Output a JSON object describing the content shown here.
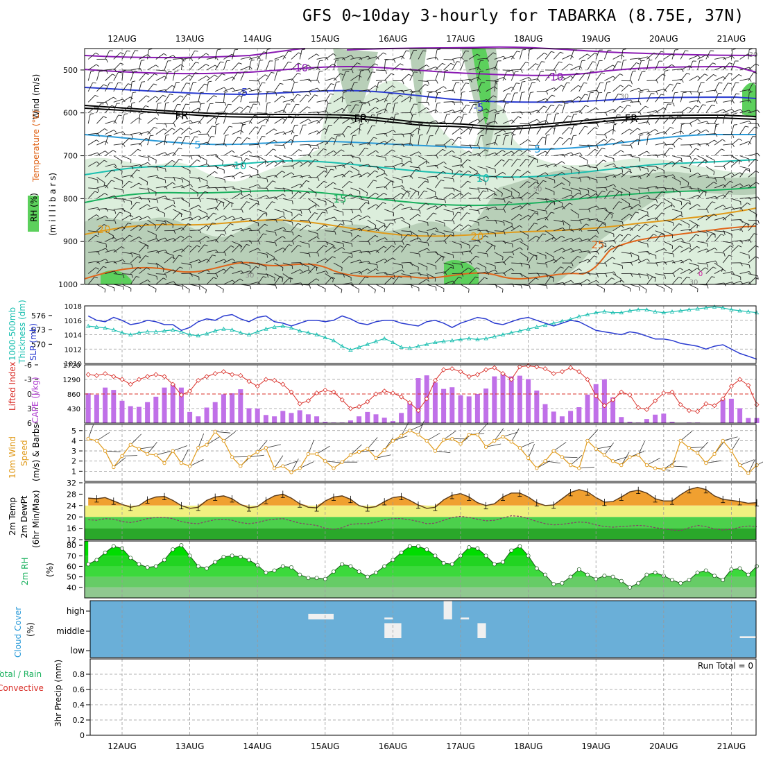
{
  "title": "GFS 0~10day 3-hourly for TABARKA (8.75E, 37N)",
  "days": [
    "12AUG",
    "13AUG",
    "14AUG",
    "15AUG",
    "16AUG",
    "17AUG",
    "18AUG",
    "19AUG",
    "20AUG",
    "21AUG"
  ],
  "colors": {
    "purple": "#8a1ab3",
    "blue": "#2a3bd0",
    "sky": "#2a9ad8",
    "teal": "#1abfb0",
    "green": "#1ab15e",
    "gold": "#e09a1a",
    "orange": "#e0651a",
    "cloud": "#6aafd8",
    "rh_light": "#dceedc",
    "rh_mid": "#b8cfb8",
    "rh_wet": "#5cd05c"
  },
  "panels": {
    "upper_air": {
      "label_wind": "Wind (m/s)",
      "label_temp": "Temperature (°C)",
      "label_rh": "RH (%)",
      "label_axis": "(m i l l i b a r s)",
      "yticks": [
        "500",
        "600",
        "700",
        "800",
        "900",
        "1000"
      ],
      "contour_labels": [
        "-10",
        "-10",
        "-5",
        "-5",
        "FR",
        "FR",
        "FR",
        "-5",
        "-5",
        "-10",
        "5",
        "10",
        "15",
        "20",
        "20",
        "25",
        "30",
        "30",
        "30",
        "50",
        "0"
      ]
    },
    "slp": {
      "label_thk": "Thickness (dm)",
      "label_thk2": "1000-500mb",
      "label_slp": "SLP (mb)",
      "thk_ticks": [
        "576",
        "573",
        "570"
      ],
      "slp_ticks": [
        "1018",
        "1016",
        "1014",
        "1012",
        "1010"
      ]
    },
    "cape": {
      "label_li": "Lifted Index",
      "label_cape": "CAPE (J/kg)",
      "li_ticks": [
        "-6",
        "-3",
        "0",
        "3",
        "6"
      ],
      "cape_ticks": [
        "1720",
        "1290",
        "860",
        "430"
      ]
    },
    "wind10": {
      "label_a": "10m Wind",
      "label_b": "Speed",
      "label_c": "(m/s) & Barbs",
      "ticks": [
        "5",
        "4",
        "3",
        "2",
        "1"
      ]
    },
    "temp2m": {
      "label_a": "2m Temp",
      "label_b": "2m DewPt",
      "label_c": "(6hr Min/Max)",
      "ticks": [
        "32",
        "28",
        "24",
        "20",
        "16",
        "12"
      ]
    },
    "rh2m": {
      "label_a": "2m RH",
      "label_b": "(%)",
      "ticks": [
        "80",
        "70",
        "60",
        "50",
        "40"
      ]
    },
    "cloud": {
      "label_a": "Cloud Cover",
      "label_b": "(%)",
      "levels": [
        "high",
        "middle",
        "low"
      ]
    },
    "precip": {
      "label_a": "3hr Precip (mm)",
      "label_b": "Total / Rain",
      "label_c": "Convective",
      "run_total": "Run Total = 0",
      "ticks": [
        "0.8",
        "0.6",
        "0.4",
        "0.2",
        "0"
      ]
    }
  },
  "chart_data": {
    "type": "line",
    "title": "GFS 0~10day 3-hourly for TABARKA (8.75E, 37N)",
    "x_start": "11AUG 12Z",
    "step_hours": 3,
    "slp_mb": [
      1016.6,
      1016.0,
      1015.8,
      1016.4,
      1016.0,
      1015.4,
      1015.6,
      1016.0,
      1015.8,
      1015.4,
      1015.4,
      1014.6,
      1015.0,
      1015.8,
      1016.2,
      1016.0,
      1016.6,
      1016.8,
      1016.2,
      1015.8,
      1016.4,
      1016.6,
      1015.8,
      1015.6,
      1015.2,
      1015.6,
      1016.0,
      1016.0,
      1015.8,
      1016.0,
      1016.6,
      1016.2,
      1015.6,
      1015.4,
      1015.8,
      1016.0,
      1016.0,
      1015.6,
      1015.4,
      1015.2,
      1015.8,
      1016.0,
      1015.6,
      1015.0,
      1015.6,
      1016.0,
      1016.4,
      1016.2,
      1015.6,
      1015.4,
      1015.8,
      1016.2,
      1016.4,
      1016.0,
      1015.6,
      1015.2,
      1015.6,
      1016.0,
      1015.8,
      1015.2,
      1014.6,
      1014.4,
      1014.2,
      1014.0,
      1014.4,
      1014.2,
      1013.8,
      1013.4,
      1013.4,
      1013.2,
      1012.8,
      1012.6,
      1012.4,
      1012.0,
      1012.4,
      1012.6,
      1012.0,
      1011.4,
      1011.0,
      1010.6
    ],
    "thickness_dm": [
      573.8,
      573.6,
      573.4,
      573.0,
      572.4,
      572.0,
      572.4,
      572.6,
      572.6,
      572.8,
      573.0,
      572.6,
      572.0,
      571.8,
      572.2,
      572.8,
      573.2,
      573.0,
      572.4,
      572.0,
      572.6,
      573.2,
      573.6,
      573.8,
      573.4,
      572.8,
      572.4,
      572.0,
      571.4,
      570.8,
      569.6,
      568.8,
      569.4,
      570.0,
      570.6,
      571.2,
      570.4,
      569.4,
      569.2,
      569.6,
      570.0,
      570.4,
      570.6,
      570.8,
      571.0,
      571.2,
      571.0,
      571.2,
      571.6,
      572.0,
      572.4,
      572.8,
      573.2,
      573.6,
      574.0,
      574.4,
      574.8,
      575.2,
      575.8,
      576.2,
      576.6,
      576.8,
      576.6,
      576.6,
      577.0,
      577.2,
      577.2,
      576.8,
      576.6,
      576.8,
      577.0,
      577.2,
      577.4,
      577.6,
      577.8,
      577.6,
      577.2,
      577.0,
      576.8,
      576.6
    ],
    "lifted_index": [
      -4.0,
      -3.8,
      -4.2,
      -3.6,
      -3.0,
      -2.0,
      -3.0,
      -3.6,
      -4.0,
      -3.6,
      -2.0,
      0.2,
      -0.6,
      -2.8,
      -3.6,
      -4.2,
      -4.6,
      -4.0,
      -3.8,
      -2.6,
      -1.6,
      -3.0,
      -2.8,
      -2.0,
      -0.4,
      2.0,
      1.4,
      -0.2,
      -0.8,
      -0.4,
      1.2,
      3.0,
      2.6,
      1.6,
      0.0,
      -0.6,
      -0.2,
      0.6,
      1.8,
      3.4,
      1.0,
      -2.8,
      -5.0,
      -5.2,
      -4.6,
      -3.6,
      -4.0,
      -5.0,
      -5.4,
      -4.2,
      -3.0,
      -5.6,
      -5.8,
      -5.6,
      -5.2,
      -4.2,
      -4.6,
      -5.4,
      -4.6,
      -3.0,
      0.4,
      2.4,
      1.2,
      -0.4,
      0.2,
      2.8,
      3.2,
      1.4,
      -0.2,
      -0.4,
      2.2,
      3.4,
      3.6,
      2.0,
      2.4,
      1.0,
      -1.6,
      -3.0,
      -1.8,
      2.2
    ],
    "cape_jkg": [
      880,
      840,
      1050,
      980,
      660,
      500,
      480,
      620,
      780,
      1050,
      1150,
      1050,
      330,
      200,
      460,
      620,
      850,
      880,
      1000,
      440,
      430,
      240,
      200,
      360,
      300,
      380,
      260,
      200,
      40,
      20,
      20,
      80,
      200,
      330,
      260,
      160,
      60,
      300,
      620,
      1330,
      1410,
      1200,
      1010,
      1060,
      820,
      790,
      860,
      1020,
      1380,
      1470,
      1380,
      1400,
      1300,
      960,
      560,
      340,
      200,
      360,
      470,
      840,
      1150,
      1290,
      760,
      180,
      40,
      20,
      120,
      250,
      280,
      40,
      0,
      20,
      20,
      0,
      0,
      700,
      720,
      440,
      150,
      150
    ],
    "wind10m_ms": [
      4.2,
      4.0,
      3.0,
      1.4,
      2.5,
      3.6,
      3.2,
      2.7,
      2.6,
      1.8,
      3.0,
      1.8,
      1.5,
      3.3,
      3.6,
      4.9,
      4.0,
      2.4,
      1.5,
      2.4,
      2.9,
      3.3,
      1.3,
      1.5,
      0.9,
      1.3,
      2.7,
      2.7,
      2.0,
      1.3,
      1.9,
      2.6,
      2.9,
      3.2,
      2.3,
      3.1,
      4.0,
      4.5,
      5.0,
      4.6,
      4.0,
      3.0,
      4.1,
      4.2,
      3.7,
      4.6,
      4.6,
      3.4,
      4.0,
      4.4,
      3.9,
      3.3,
      2.3,
      1.3,
      2.0,
      3.0,
      2.4,
      1.6,
      1.3,
      4.0,
      3.2,
      2.6,
      2.0,
      1.6,
      2.4,
      2.6,
      1.6,
      1.3,
      1.2,
      1.5,
      4.0,
      3.3,
      2.8,
      1.8,
      2.7,
      4.0,
      3.0,
      1.6,
      0.8,
      1.6
    ],
    "temp2m_c": [
      26.6,
      26.4,
      26.8,
      25.6,
      24.4,
      23.4,
      24.0,
      26.0,
      27.0,
      27.2,
      25.8,
      24.0,
      23.0,
      23.4,
      25.8,
      27.0,
      27.4,
      26.4,
      24.4,
      23.2,
      23.6,
      25.8,
      27.4,
      28.0,
      26.6,
      24.6,
      23.4,
      23.2,
      25.6,
      27.0,
      27.4,
      26.2,
      24.0,
      23.2,
      23.6,
      25.4,
      26.8,
      27.2,
      25.8,
      24.2,
      23.0,
      23.4,
      26.0,
      27.6,
      28.2,
      27.0,
      25.0,
      24.0,
      24.6,
      27.0,
      28.4,
      28.4,
      27.0,
      25.0,
      24.0,
      24.2,
      26.4,
      28.6,
      29.6,
      28.8,
      26.8,
      25.2,
      25.4,
      27.0,
      28.8,
      29.4,
      28.4,
      26.4,
      25.6,
      25.6,
      27.8,
      29.6,
      30.4,
      29.6,
      27.4,
      26.2,
      25.8,
      25.4,
      24.8,
      25.0
    ],
    "dewpt2m_c": [
      19.0,
      18.8,
      19.4,
      19.2,
      18.4,
      18.0,
      18.6,
      19.4,
      19.8,
      19.8,
      19.4,
      18.4,
      17.8,
      17.6,
      18.4,
      19.0,
      19.2,
      18.8,
      18.0,
      17.6,
      18.0,
      18.8,
      19.2,
      19.4,
      18.6,
      17.8,
      17.4,
      17.0,
      16.0,
      15.6,
      16.2,
      17.4,
      17.6,
      17.6,
      18.2,
      19.0,
      19.4,
      19.4,
      19.0,
      18.4,
      17.6,
      17.8,
      18.8,
      19.8,
      20.2,
      19.8,
      19.2,
      18.6,
      18.8,
      19.6,
      20.4,
      20.2,
      19.4,
      18.4,
      17.6,
      17.2,
      17.4,
      17.8,
      18.2,
      18.0,
      17.2,
      16.6,
      16.4,
      16.6,
      16.8,
      17.0,
      16.8,
      16.2,
      15.8,
      15.4,
      15.2,
      16.2,
      17.0,
      16.6,
      15.8,
      15.4,
      15.6,
      16.4,
      16.8,
      16.6
    ],
    "rh2m_pct": [
      62,
      66,
      73,
      79,
      77,
      68,
      62,
      59,
      60,
      66,
      76,
      80,
      70,
      60,
      58,
      64,
      69,
      70,
      69,
      66,
      61,
      54,
      56,
      60,
      59,
      52,
      49,
      49,
      48,
      55,
      62,
      60,
      55,
      50,
      54,
      60,
      66,
      73,
      79,
      79,
      76,
      70,
      63,
      62,
      70,
      78,
      77,
      70,
      62,
      64,
      75,
      79,
      70,
      58,
      52,
      43,
      44,
      50,
      57,
      52,
      48,
      51,
      50,
      46,
      40,
      44,
      52,
      54,
      51,
      47,
      44,
      47,
      54,
      56,
      51,
      47,
      57,
      58,
      52,
      60
    ],
    "precip_mm": [
      0,
      0,
      0,
      0,
      0,
      0,
      0,
      0,
      0,
      0,
      0,
      0,
      0,
      0,
      0,
      0,
      0,
      0,
      0,
      0,
      0,
      0,
      0,
      0,
      0,
      0,
      0,
      0,
      0,
      0,
      0,
      0,
      0,
      0,
      0,
      0,
      0,
      0,
      0,
      0,
      0,
      0,
      0,
      0,
      0,
      0,
      0,
      0,
      0,
      0,
      0,
      0,
      0,
      0,
      0,
      0,
      0,
      0,
      0,
      0,
      0,
      0,
      0,
      0,
      0,
      0,
      0,
      0,
      0,
      0,
      0,
      0,
      0,
      0,
      0,
      0,
      0,
      0,
      0,
      0
    ],
    "cloud_events": [
      {
        "level": "high",
        "start": "14AUG 18Z",
        "end": "15AUG 03Z",
        "pct": 30
      },
      {
        "level": "high",
        "start": "15AUG 21Z",
        "end": "16AUG 00Z",
        "pct": 10
      },
      {
        "level": "high",
        "start": "16AUG 18Z",
        "end": "16AUG 21Z",
        "pct": 100
      },
      {
        "level": "high",
        "start": "17AUG 00Z",
        "end": "17AUG 03Z",
        "pct": 10
      },
      {
        "level": "middle",
        "start": "15AUG 21Z",
        "end": "16AUG 03Z",
        "pct": 80
      },
      {
        "level": "middle",
        "start": "17AUG 06Z",
        "end": "17AUG 09Z",
        "pct": 80
      },
      {
        "level": "middle",
        "start": "21AUG 03Z",
        "end": "21AUG 09Z",
        "pct": 10
      }
    ]
  }
}
